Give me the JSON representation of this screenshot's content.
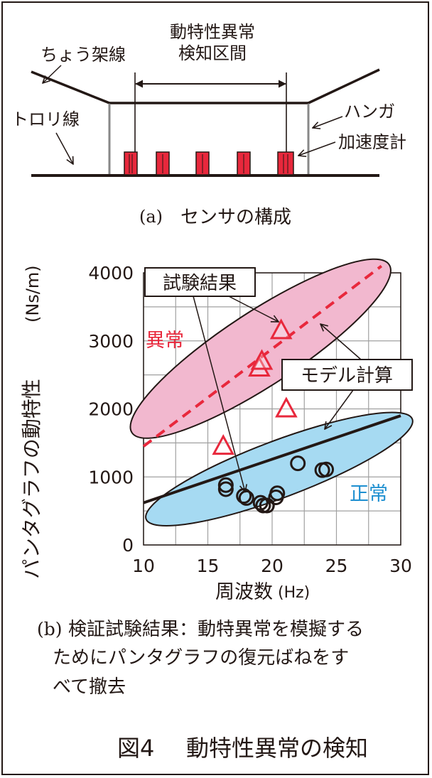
{
  "diagram_a": {
    "catenary_label": "ちょう架線",
    "contact_wire_label": "トロリ線",
    "section_label_1": "動特性異常",
    "section_label_2": "検知区間",
    "hanger_label": "ハンガ",
    "accelerometer_label": "加速度計",
    "caption_prefix": "(a)",
    "caption_text": "センサの構成"
  },
  "chart_data": {
    "type": "scatter",
    "xlabel": "周波数",
    "xlabel_unit": "(Hz)",
    "ylabel": "パンタグラフの動特性",
    "ylabel_unit": "(Ns/m)",
    "xlim": [
      10,
      30
    ],
    "ylim": [
      0,
      4000
    ],
    "xticks": [
      "10",
      "15",
      "20",
      "25",
      "30"
    ],
    "yticks": [
      "0",
      "1000",
      "2000",
      "3000",
      "4000"
    ],
    "grid": true,
    "series": [
      {
        "name": "異常",
        "marker": "triangle",
        "color": "#e8283c",
        "points": [
          [
            16.2,
            1450
          ],
          [
            19.0,
            2600
          ],
          [
            19.2,
            2700
          ],
          [
            20.7,
            3150
          ],
          [
            21.1,
            2000
          ]
        ]
      },
      {
        "name": "正常",
        "marker": "circle",
        "color": "#231815",
        "points": [
          [
            16.4,
            880
          ],
          [
            16.4,
            820
          ],
          [
            17.8,
            720
          ],
          [
            18.0,
            690
          ],
          [
            19.1,
            620
          ],
          [
            19.3,
            580
          ],
          [
            19.6,
            580
          ],
          [
            20.3,
            700
          ],
          [
            20.4,
            760
          ],
          [
            22.0,
            1200
          ],
          [
            23.9,
            1100
          ],
          [
            24.2,
            1110
          ]
        ]
      }
    ],
    "lines": [
      {
        "name": "モデル計算 (異常)",
        "style": "dashed",
        "color": "#e8283c",
        "x": [
          10,
          28.5
        ],
        "y": [
          1450,
          4100
        ]
      },
      {
        "name": "モデル計算 (正常)",
        "style": "solid",
        "color": "#231815",
        "x": [
          10,
          30
        ],
        "y": [
          620,
          1900
        ]
      }
    ],
    "annotations": {
      "test_result": "試験結果",
      "model_calc": "モデル計算",
      "abnormal": "異常",
      "normal": "正常"
    },
    "colors": {
      "abnormal_fill": "#f2b8cf",
      "normal_fill": "#a6daf2",
      "abnormal_text": "#e8283c",
      "normal_text": "#1e8fd0"
    }
  },
  "caption_b": {
    "prefix": "(b)",
    "line1": "検証試験結果：動特異常を模擬する",
    "line2": "ためにパンタグラフの復元ばねをす",
    "line3": "べて撤去"
  },
  "figure_title": {
    "number": "図4",
    "text": "動特性異常の検知"
  }
}
